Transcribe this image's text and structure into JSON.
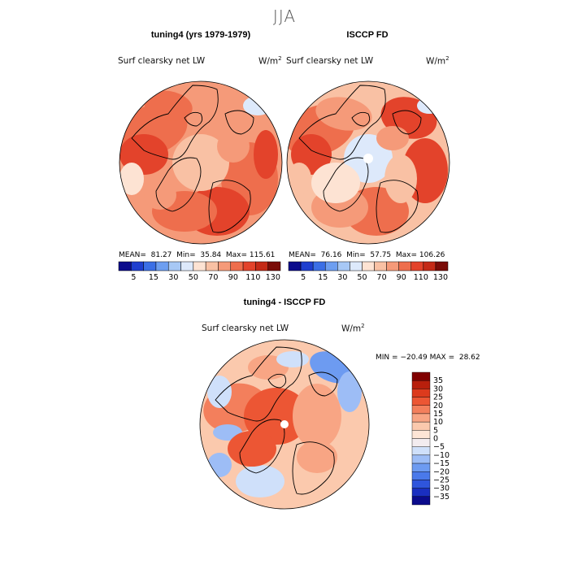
{
  "season_title": "JJA",
  "panels": {
    "model": {
      "title": "tuning4 (yrs 1979-1979)",
      "variable": "Surf clearsky net LW",
      "units_base": "W/m",
      "units_exp": "2",
      "stats": {
        "mean_label": "MEAN=",
        "mean": "81.27",
        "min_label": "Min=",
        "min": "35.84",
        "max_label": "Max=",
        "max": "115.61"
      }
    },
    "obs": {
      "title": "ISCCP FD",
      "variable": "Surf clearsky net LW",
      "units_base": "W/m",
      "units_exp": "2",
      "stats": {
        "mean_label": "MEAN=",
        "mean": "76.16",
        "min_label": "Min=",
        "min": "57.75",
        "max_label": "Max=",
        "max": "106.26"
      }
    },
    "diff": {
      "title": "tuning4 - ISCCP FD",
      "variable": "Surf clearsky net LW",
      "units_base": "W/m",
      "units_exp": "2",
      "stats": {
        "min_label": "MIN =",
        "min": "−20.49",
        "max_label": "MAX =",
        "max": "28.62"
      }
    }
  },
  "colors": {
    "abs_scale": [
      "#0b0b8c",
      "#1f3fcf",
      "#3b6fe6",
      "#6d9ef0",
      "#a7c8f5",
      "#dde9fb",
      "#fde3d3",
      "#f9c1a4",
      "#f59a79",
      "#ee6e4d",
      "#e3432b",
      "#c42a17",
      "#7a0c08"
    ],
    "diff_scale": [
      "#0b0b8c",
      "#1a2fc0",
      "#2f55dc",
      "#4a79ea",
      "#6d9bf1",
      "#9dbdf6",
      "#cfe0fa",
      "#f3ecef",
      "#fde5d6",
      "#fbc9ad",
      "#f8a584",
      "#f37f5c",
      "#ec5634",
      "#dc3a1d",
      "#b81f0c",
      "#800000"
    ],
    "land_line": "#000000"
  },
  "chart_data": [
    {
      "type": "heatmap",
      "title": "tuning4 (yrs 1979-1979)",
      "subtitle": "Surf clearsky net LW",
      "units": "W/m2",
      "colorbar_levels": [
        5,
        15,
        30,
        50,
        70,
        90,
        110,
        130
      ],
      "mean": 81.27,
      "min": 35.84,
      "max": 115.61
    },
    {
      "type": "heatmap",
      "title": "ISCCP FD",
      "subtitle": "Surf clearsky net LW",
      "units": "W/m2",
      "colorbar_levels": [
        5,
        15,
        30,
        50,
        70,
        90,
        110,
        130
      ],
      "mean": 76.16,
      "min": 57.75,
      "max": 106.26
    },
    {
      "type": "heatmap",
      "title": "tuning4 - ISCCP FD",
      "subtitle": "Surf clearsky net LW",
      "units": "W/m2",
      "colorbar_levels": [
        35,
        30,
        25,
        20,
        15,
        10,
        5,
        0,
        -5,
        -10,
        -15,
        -20,
        -25,
        -30,
        -35
      ],
      "min": -20.49,
      "max": 28.62
    }
  ],
  "colorbar_tick_labels": {
    "abs": [
      "5",
      "15",
      "30",
      "50",
      "70",
      "90",
      "110",
      "130"
    ],
    "diff": [
      "35",
      "30",
      "25",
      "20",
      "15",
      "10",
      "5",
      "0",
      "−5",
      "−10",
      "−15",
      "−20",
      "−25",
      "−30",
      "−35"
    ]
  }
}
